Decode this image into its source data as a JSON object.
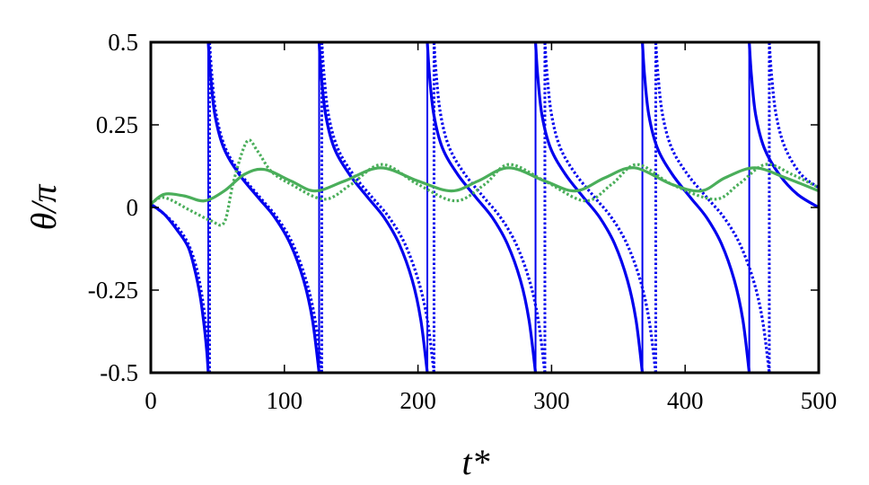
{
  "chart_data": {
    "type": "line",
    "title": "",
    "xlabel": "t*",
    "ylabel": "θ/π",
    "xlim": [
      0,
      500
    ],
    "ylim": [
      -0.5,
      0.5
    ],
    "xticks": [
      "0",
      "100",
      "200",
      "300",
      "400",
      "500"
    ],
    "yticks": [
      "0.5",
      "0.25",
      "0",
      "-0.25",
      "-0.5"
    ],
    "grid": false,
    "legend": "none",
    "series": [
      {
        "color": "#0000ee",
        "style": "solid",
        "points": [
          [
            0,
            0.01
          ],
          [
            10,
            -0.02
          ],
          [
            20,
            -0.07
          ],
          [
            28,
            -0.12
          ],
          [
            33,
            -0.19
          ],
          [
            37,
            -0.27
          ],
          [
            40,
            -0.36
          ],
          [
            42,
            -0.44
          ],
          [
            43,
            -0.5
          ],
          null,
          [
            43,
            0.5
          ],
          [
            44.7,
            0.4
          ],
          [
            48,
            0.28
          ],
          [
            54.6,
            0.18
          ],
          [
            66.2,
            0.1
          ],
          [
            80.4,
            0.03
          ],
          [
            92.8,
            -0.03
          ],
          [
            104.4,
            -0.11
          ],
          [
            114.4,
            -0.22
          ],
          [
            121,
            -0.34
          ],
          [
            126,
            -0.5
          ],
          null,
          [
            126,
            0.5
          ],
          [
            127.6,
            0.4
          ],
          [
            130.9,
            0.28
          ],
          [
            137.3,
            0.18
          ],
          [
            148.7,
            0.1
          ],
          [
            162.5,
            0.03
          ],
          [
            174.6,
            -0.03
          ],
          [
            185.9,
            -0.11
          ],
          [
            195.7,
            -0.22
          ],
          [
            202.1,
            -0.34
          ],
          [
            207,
            -0.5
          ],
          null,
          [
            207,
            0.5
          ],
          [
            208.6,
            0.4
          ],
          [
            211.9,
            0.28
          ],
          [
            218.3,
            0.18
          ],
          [
            229.7,
            0.1
          ],
          [
            243.5,
            0.03
          ],
          [
            255.6,
            -0.03
          ],
          [
            266.9,
            -0.11
          ],
          [
            276.7,
            -0.22
          ],
          [
            283.1,
            -0.34
          ],
          [
            288,
            -0.5
          ],
          null,
          [
            288,
            0.5
          ],
          [
            289.6,
            0.4
          ],
          [
            292.8,
            0.28
          ],
          [
            299.2,
            0.18
          ],
          [
            310.4,
            0.1
          ],
          [
            324,
            0.03
          ],
          [
            336,
            -0.03
          ],
          [
            347.2,
            -0.11
          ],
          [
            356.8,
            -0.22
          ],
          [
            363.2,
            -0.34
          ],
          [
            368,
            -0.5
          ],
          null,
          [
            368,
            0.5
          ],
          [
            369.6,
            0.4
          ],
          [
            372.8,
            0.28
          ],
          [
            379.2,
            0.18
          ],
          [
            390.4,
            0.1
          ],
          [
            404,
            0.03
          ],
          [
            416,
            -0.03
          ],
          [
            427.2,
            -0.11
          ],
          [
            436.8,
            -0.22
          ],
          [
            443.2,
            -0.34
          ],
          [
            448,
            -0.5
          ],
          null,
          [
            448,
            0.5
          ],
          [
            449.6,
            0.4
          ],
          [
            452.8,
            0.28
          ],
          [
            459.2,
            0.18
          ],
          [
            470.4,
            0.1
          ],
          [
            484,
            0.04
          ],
          [
            500,
            0.0
          ]
        ]
      },
      {
        "color": "#0000ee",
        "style": "dotted",
        "points": [
          [
            0,
            0.01
          ],
          [
            10,
            -0.02
          ],
          [
            20,
            -0.06
          ],
          [
            28,
            -0.11
          ],
          [
            34,
            -0.18
          ],
          [
            38,
            -0.26
          ],
          [
            41,
            -0.35
          ],
          [
            43,
            -0.44
          ],
          [
            44,
            -0.5
          ],
          null,
          [
            44,
            0.5
          ],
          [
            45.7,
            0.4
          ],
          [
            49,
            0.28
          ],
          [
            55.8,
            0.18
          ],
          [
            67.5,
            0.1
          ],
          [
            81.8,
            0.03
          ],
          [
            94.4,
            -0.03
          ],
          [
            106.2,
            -0.11
          ],
          [
            116.2,
            -0.22
          ],
          [
            123,
            -0.34
          ],
          [
            128,
            -0.5
          ],
          null,
          [
            128,
            0.5
          ],
          [
            129.7,
            0.4
          ],
          [
            133,
            0.28
          ],
          [
            139.8,
            0.18
          ],
          [
            151.5,
            0.1
          ],
          [
            165.8,
            0.03
          ],
          [
            178.4,
            -0.03
          ],
          [
            190.2,
            -0.11
          ],
          [
            200.2,
            -0.22
          ],
          [
            207,
            -0.34
          ],
          [
            212,
            -0.5
          ],
          null,
          [
            212,
            0.5
          ],
          [
            213.7,
            0.4
          ],
          [
            217,
            0.28
          ],
          [
            223.6,
            0.18
          ],
          [
            235.2,
            0.1
          ],
          [
            249.4,
            0.03
          ],
          [
            261.8,
            -0.03
          ],
          [
            273.4,
            -0.11
          ],
          [
            283.4,
            -0.22
          ],
          [
            290,
            -0.34
          ],
          [
            295,
            -0.5
          ],
          null,
          [
            295,
            0.5
          ],
          [
            296.7,
            0.4
          ],
          [
            300,
            0.28
          ],
          [
            306.6,
            0.18
          ],
          [
            318.2,
            0.1
          ],
          [
            332.4,
            0.03
          ],
          [
            344.8,
            -0.03
          ],
          [
            356.4,
            -0.11
          ],
          [
            366.4,
            -0.22
          ],
          [
            373,
            -0.34
          ],
          [
            378,
            -0.5
          ],
          null,
          [
            378,
            0.5
          ],
          [
            379.7,
            0.4
          ],
          [
            383.1,
            0.28
          ],
          [
            389.9,
            0.18
          ],
          [
            401.8,
            0.1
          ],
          [
            416.3,
            0.03
          ],
          [
            429,
            -0.03
          ],
          [
            440.9,
            -0.11
          ],
          [
            451.1,
            -0.22
          ],
          [
            457.9,
            -0.34
          ],
          [
            463,
            -0.5
          ],
          null,
          [
            463,
            0.5
          ],
          [
            464.7,
            0.4
          ],
          [
            468.1,
            0.28
          ],
          [
            474.9,
            0.18
          ],
          [
            486.8,
            0.1
          ],
          [
            500,
            0.06
          ]
        ]
      },
      {
        "color": "#4aae5a",
        "style": "solid",
        "points": [
          [
            0,
            0.01
          ],
          [
            10,
            0.04
          ],
          [
            25,
            0.035
          ],
          [
            40,
            0.02
          ],
          [
            55,
            0.05
          ],
          [
            70,
            0.1
          ],
          [
            85,
            0.115
          ],
          [
            105,
            0.08
          ],
          [
            123,
            0.05
          ],
          [
            145,
            0.08
          ],
          [
            172,
            0.12
          ],
          [
            200,
            0.08
          ],
          [
            225,
            0.05
          ],
          [
            245,
            0.08
          ],
          [
            268,
            0.12
          ],
          [
            295,
            0.08
          ],
          [
            318,
            0.05
          ],
          [
            340,
            0.09
          ],
          [
            362,
            0.12
          ],
          [
            390,
            0.07
          ],
          [
            412,
            0.05
          ],
          [
            430,
            0.09
          ],
          [
            452,
            0.12
          ],
          [
            475,
            0.09
          ],
          [
            500,
            0.05
          ]
        ]
      },
      {
        "color": "#4aae5a",
        "style": "dotted",
        "points": [
          [
            0,
            0.01
          ],
          [
            10,
            0.03
          ],
          [
            30,
            -0.01
          ],
          [
            45,
            -0.04
          ],
          [
            55,
            -0.045
          ],
          [
            62,
            0.08
          ],
          [
            72,
            0.2
          ],
          [
            80,
            0.17
          ],
          [
            90,
            0.11
          ],
          [
            105,
            0.07
          ],
          [
            130,
            0.025
          ],
          [
            150,
            0.07
          ],
          [
            173,
            0.13
          ],
          [
            200,
            0.07
          ],
          [
            228,
            0.02
          ],
          [
            250,
            0.07
          ],
          [
            268,
            0.13
          ],
          [
            295,
            0.08
          ],
          [
            325,
            0.02
          ],
          [
            345,
            0.07
          ],
          [
            364,
            0.13
          ],
          [
            390,
            0.07
          ],
          [
            422,
            0.025
          ],
          [
            440,
            0.07
          ],
          [
            460,
            0.13
          ],
          [
            480,
            0.1
          ],
          [
            500,
            0.06
          ]
        ]
      }
    ]
  }
}
